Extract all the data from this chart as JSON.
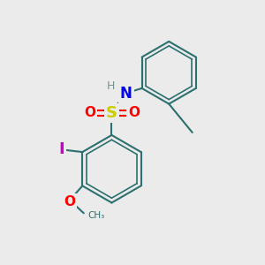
{
  "background_color": "#ebebeb",
  "bond_color": "#2d7070",
  "bond_width": 1.5,
  "atom_colors": {
    "H": "#7a9090",
    "N": "#0000ee",
    "S": "#cccc00",
    "O": "#ff0000",
    "I": "#cc00cc",
    "C": "#2d7070"
  },
  "figsize": [
    3.0,
    3.0
  ],
  "dpi": 100,
  "xlim": [
    0,
    10
  ],
  "ylim": [
    0,
    10
  ]
}
